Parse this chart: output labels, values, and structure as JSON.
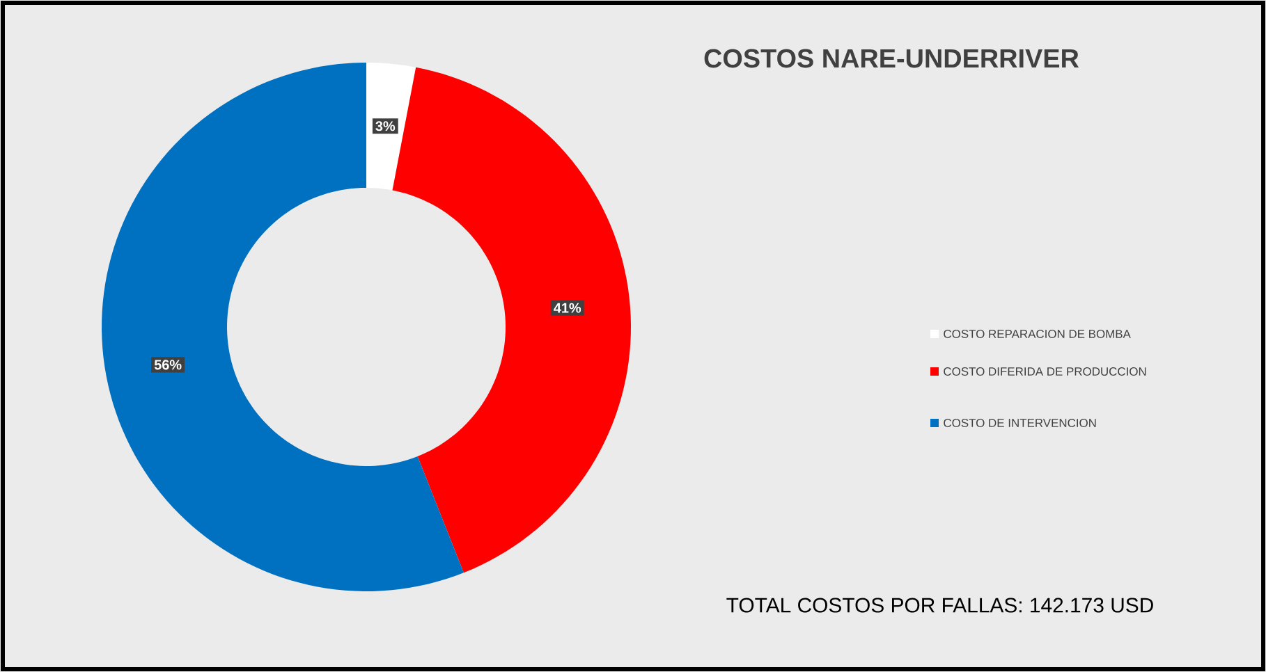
{
  "chart_data": {
    "type": "donut",
    "title": "COSTOS NARE-UNDERRIVER",
    "categories": [
      "COSTO REPARACION DE BOMBA",
      "COSTO DIFERIDA DE PRODUCCION",
      "COSTO DE INTERVENCION"
    ],
    "values": [
      3,
      41,
      56
    ],
    "colors": [
      "#ffffff",
      "#ff0000",
      "#0070c0"
    ],
    "value_labels": [
      "3%",
      "41%",
      "56%"
    ],
    "legend": "right",
    "annotations": [
      "TOTAL COSTOS POR FALLAS: 142.173 USD"
    ]
  }
}
